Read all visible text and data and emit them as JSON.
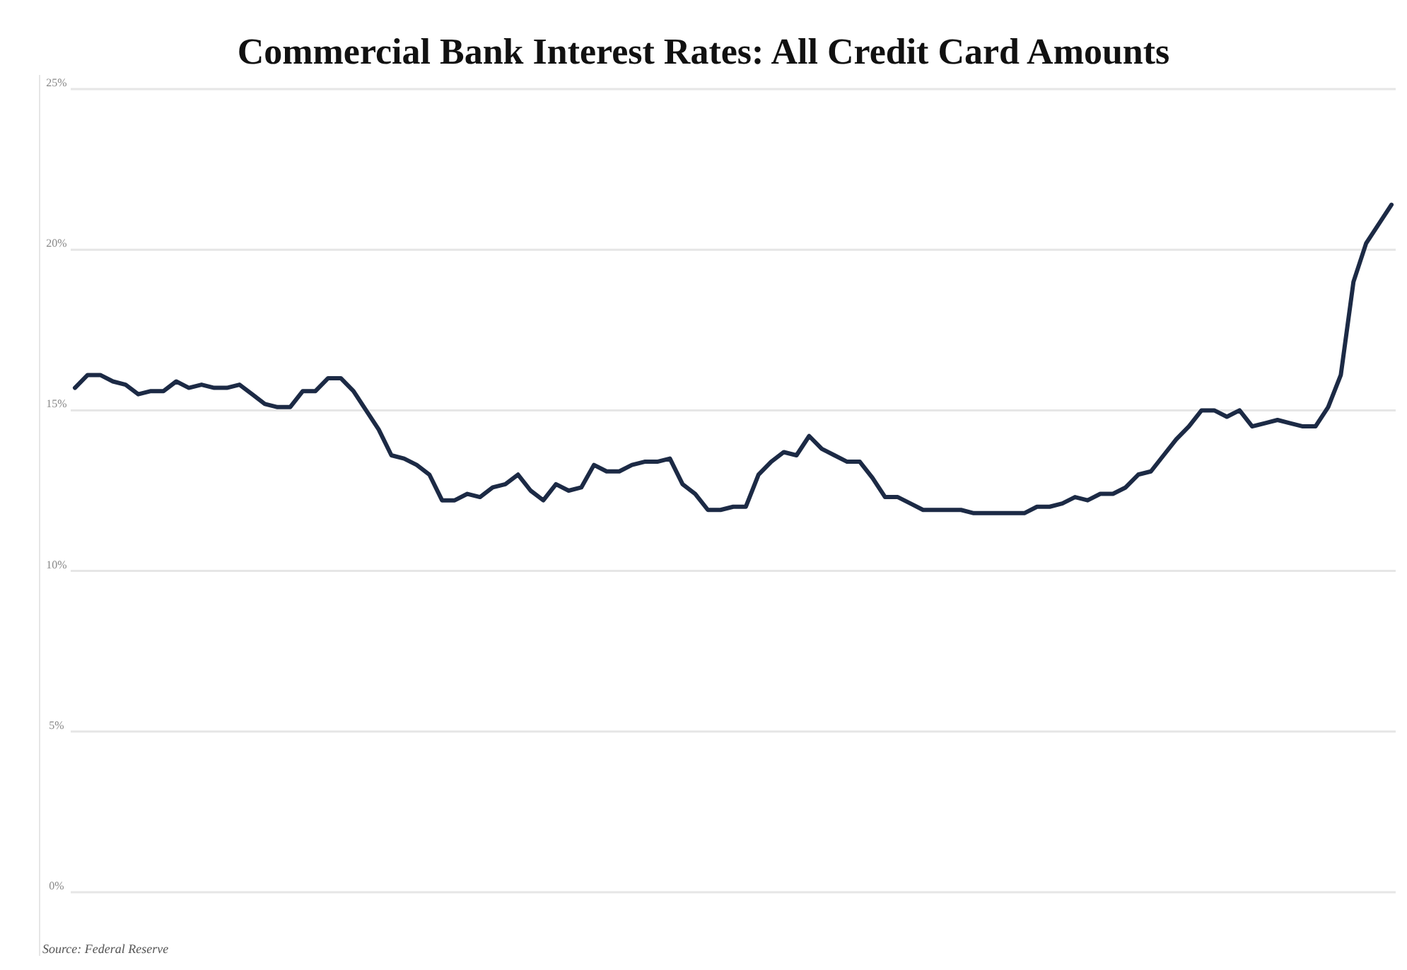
{
  "chart_data": {
    "type": "line",
    "title": "Commercial Bank Interest Rates: All Credit Card Amounts",
    "annotations": [
      "Source: Federal Reserve"
    ],
    "categories": [
      null,
      null,
      null,
      null,
      null,
      null,
      null,
      null,
      null,
      null,
      null,
      null,
      null,
      null,
      null,
      null,
      null,
      null,
      null,
      null,
      null,
      null,
      null,
      null,
      null,
      null,
      null,
      null,
      null,
      null,
      null,
      null,
      null,
      null,
      null,
      null,
      null,
      null,
      null,
      null,
      null,
      null,
      null,
      null,
      null,
      null,
      null,
      null,
      null,
      null,
      null,
      null,
      null,
      null,
      null,
      null,
      null,
      null,
      null,
      null,
      null,
      null,
      null,
      null,
      null,
      null,
      null,
      null,
      null,
      null,
      null,
      null,
      null,
      null,
      null,
      null,
      null,
      null,
      null,
      null,
      null,
      null,
      null,
      null,
      null,
      null,
      null,
      null,
      null,
      null,
      null,
      null,
      null,
      null,
      null,
      null,
      null,
      null,
      null,
      null,
      null,
      null,
      null,
      null,
      null
    ],
    "series": [
      {
        "color": "#1c2a45",
        "values": [
          15.7,
          16.1,
          16.1,
          15.9,
          15.8,
          15.5,
          15.6,
          15.6,
          15.9,
          15.7,
          15.8,
          15.7,
          15.7,
          15.8,
          15.5,
          15.2,
          15.1,
          15.1,
          15.6,
          15.6,
          16.0,
          16.0,
          15.6,
          15.0,
          14.4,
          13.6,
          13.5,
          13.3,
          13.0,
          12.2,
          12.2,
          12.4,
          12.3,
          12.6,
          12.7,
          13.0,
          12.5,
          12.2,
          12.7,
          12.5,
          12.6,
          13.3,
          13.1,
          13.1,
          13.3,
          13.4,
          13.4,
          13.5,
          12.7,
          12.4,
          11.9,
          11.9,
          12.0,
          12.0,
          13.0,
          13.4,
          13.7,
          13.6,
          14.2,
          13.8,
          13.6,
          13.4,
          13.4,
          12.9,
          12.3,
          12.3,
          12.1,
          11.9,
          11.9,
          11.9,
          11.9,
          11.8,
          11.8,
          11.8,
          11.8,
          11.8,
          12.0,
          12.0,
          12.1,
          12.3,
          12.2,
          12.4,
          12.4,
          12.6,
          13.0,
          13.1,
          13.6,
          14.1,
          14.5,
          15.0,
          15.0,
          14.8,
          15.0,
          14.5,
          14.6,
          14.7,
          14.6,
          14.5,
          14.5,
          15.1,
          16.1,
          19.0,
          20.2,
          20.8,
          21.4
        ]
      }
    ],
    "ylim": [
      0,
      25
    ],
    "yticks": [
      {
        "value": 0,
        "label": "0%"
      },
      {
        "value": 5,
        "label": "5%"
      },
      {
        "value": 10,
        "label": "10%"
      },
      {
        "value": 15,
        "label": "15%"
      },
      {
        "value": 20,
        "label": "20%"
      },
      {
        "value": 25,
        "label": "25%"
      }
    ],
    "grid": "y",
    "tick_labels": "y",
    "line_style": "solid"
  }
}
